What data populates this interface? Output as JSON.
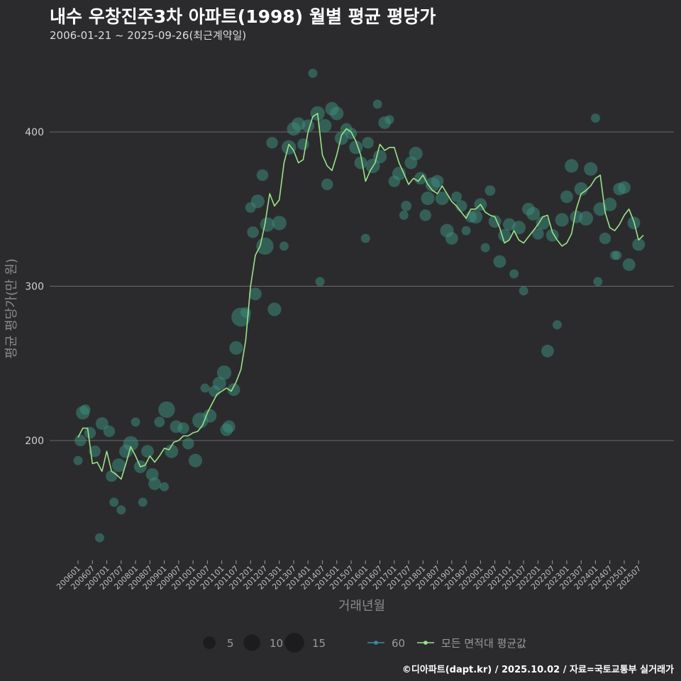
{
  "header": {
    "title": "내수 우창진주3차 아파트(1998) 월별 평균 평당가",
    "subtitle": "2006-01-21 ~ 2025-09-26(최근계약일)"
  },
  "footer": {
    "caption": "©디아파트(dapt.kr) / 2025.10.02 / 자료=국토교통부 실거래가"
  },
  "colors": {
    "background": "#2b2b2d",
    "line": "#9be38a",
    "point": "#3d8a7a",
    "grid": "#6a6a6a"
  },
  "chart_data": {
    "type": "line",
    "xlabel": "거래년월",
    "ylabel": "평균 평당가(만 원)",
    "ylim": [
      120,
      440
    ],
    "yticks": [
      200,
      300,
      400
    ],
    "grid": true,
    "xlim": [
      "2006-01",
      "2025-09"
    ],
    "x_tick_labels": [
      "200601",
      "200607",
      "200701",
      "200707",
      "200801",
      "200807",
      "200901",
      "200907",
      "201001",
      "201007",
      "201101",
      "201107",
      "201201",
      "201207",
      "201301",
      "201307",
      "201401",
      "201407",
      "201501",
      "201507",
      "201601",
      "201607",
      "201701",
      "201707",
      "201801",
      "201807",
      "201901",
      "201907",
      "202001",
      "202007",
      "202101",
      "202107",
      "202201",
      "202207",
      "202301",
      "202307",
      "202401",
      "202407",
      "202501",
      "202507"
    ],
    "legend": {
      "position": "bottom",
      "size_title": "",
      "size_entries": [
        {
          "label": "5",
          "value": 5
        },
        {
          "label": "10",
          "value": 10
        },
        {
          "label": "15",
          "value": 15
        }
      ],
      "series_entries": [
        {
          "label": "60"
        },
        {
          "label": "모든 면적대 평균값"
        }
      ]
    },
    "series": [
      {
        "name": "모든 면적대 평균값",
        "points": [
          [
            "2006-01",
            202
          ],
          [
            "2006-03",
            208
          ],
          [
            "2006-05",
            208
          ],
          [
            "2006-07",
            185
          ],
          [
            "2006-09",
            186
          ],
          [
            "2006-11",
            180
          ],
          [
            "2007-01",
            193
          ],
          [
            "2007-03",
            180
          ],
          [
            "2007-05",
            178
          ],
          [
            "2007-07",
            175
          ],
          [
            "2007-09",
            185
          ],
          [
            "2007-11",
            196
          ],
          [
            "2008-01",
            190
          ],
          [
            "2008-03",
            183
          ],
          [
            "2008-05",
            184
          ],
          [
            "2008-07",
            190
          ],
          [
            "2008-09",
            186
          ],
          [
            "2008-11",
            190
          ],
          [
            "2009-01",
            195
          ],
          [
            "2009-03",
            194
          ],
          [
            "2009-05",
            199
          ],
          [
            "2009-07",
            200
          ],
          [
            "2009-09",
            203
          ],
          [
            "2009-11",
            203
          ],
          [
            "2010-01",
            205
          ],
          [
            "2010-03",
            206
          ],
          [
            "2010-05",
            210
          ],
          [
            "2010-07",
            218
          ],
          [
            "2010-09",
            224
          ],
          [
            "2010-11",
            230
          ],
          [
            "2011-01",
            232
          ],
          [
            "2011-03",
            234
          ],
          [
            "2011-05",
            232
          ],
          [
            "2011-07",
            238
          ],
          [
            "2011-09",
            246
          ],
          [
            "2011-11",
            265
          ],
          [
            "2012-01",
            300
          ],
          [
            "2012-03",
            320
          ],
          [
            "2012-05",
            326
          ],
          [
            "2012-07",
            340
          ],
          [
            "2012-09",
            360
          ],
          [
            "2012-11",
            352
          ],
          [
            "2013-01",
            356
          ],
          [
            "2013-03",
            380
          ],
          [
            "2013-05",
            392
          ],
          [
            "2013-07",
            388
          ],
          [
            "2013-09",
            380
          ],
          [
            "2013-11",
            382
          ],
          [
            "2014-01",
            400
          ],
          [
            "2014-03",
            410
          ],
          [
            "2014-05",
            412
          ],
          [
            "2014-07",
            385
          ],
          [
            "2014-09",
            378
          ],
          [
            "2014-11",
            375
          ],
          [
            "2015-01",
            385
          ],
          [
            "2015-03",
            398
          ],
          [
            "2015-05",
            402
          ],
          [
            "2015-07",
            400
          ],
          [
            "2015-09",
            394
          ],
          [
            "2015-11",
            385
          ],
          [
            "2016-01",
            368
          ],
          [
            "2016-03",
            375
          ],
          [
            "2016-05",
            380
          ],
          [
            "2016-07",
            392
          ],
          [
            "2016-09",
            388
          ],
          [
            "2016-11",
            390
          ],
          [
            "2017-01",
            390
          ],
          [
            "2017-03",
            380
          ],
          [
            "2017-05",
            373
          ],
          [
            "2017-07",
            366
          ],
          [
            "2017-09",
            370
          ],
          [
            "2017-11",
            368
          ],
          [
            "2018-01",
            372
          ],
          [
            "2018-03",
            366
          ],
          [
            "2018-05",
            362
          ],
          [
            "2018-07",
            360
          ],
          [
            "2018-09",
            365
          ],
          [
            "2018-11",
            360
          ],
          [
            "2019-01",
            355
          ],
          [
            "2019-03",
            352
          ],
          [
            "2019-05",
            348
          ],
          [
            "2019-07",
            344
          ],
          [
            "2019-09",
            350
          ],
          [
            "2019-11",
            350
          ],
          [
            "2020-01",
            353
          ],
          [
            "2020-03",
            348
          ],
          [
            "2020-05",
            346
          ],
          [
            "2020-07",
            345
          ],
          [
            "2020-09",
            338
          ],
          [
            "2020-11",
            328
          ],
          [
            "2021-01",
            330
          ],
          [
            "2021-03",
            336
          ],
          [
            "2021-05",
            330
          ],
          [
            "2021-07",
            328
          ],
          [
            "2021-09",
            332
          ],
          [
            "2021-11",
            336
          ],
          [
            "2022-01",
            340
          ],
          [
            "2022-03",
            345
          ],
          [
            "2022-05",
            346
          ],
          [
            "2022-07",
            335
          ],
          [
            "2022-09",
            330
          ],
          [
            "2022-11",
            326
          ],
          [
            "2023-01",
            328
          ],
          [
            "2023-03",
            334
          ],
          [
            "2023-05",
            350
          ],
          [
            "2023-07",
            360
          ],
          [
            "2023-09",
            362
          ],
          [
            "2023-11",
            365
          ],
          [
            "2024-01",
            370
          ],
          [
            "2024-03",
            372
          ],
          [
            "2024-05",
            348
          ],
          [
            "2024-07",
            338
          ],
          [
            "2024-09",
            336
          ],
          [
            "2024-11",
            340
          ],
          [
            "2025-01",
            346
          ],
          [
            "2025-03",
            350
          ],
          [
            "2025-05",
            342
          ],
          [
            "2025-07",
            330
          ],
          [
            "2025-09",
            333
          ]
        ]
      }
    ],
    "points": [
      [
        "2006-01",
        187,
        2
      ],
      [
        "2006-02",
        200,
        4
      ],
      [
        "2006-03",
        218,
        6
      ],
      [
        "2006-04",
        220,
        3
      ],
      [
        "2006-06",
        205,
        4
      ],
      [
        "2006-08",
        193,
        4
      ],
      [
        "2006-10",
        137,
        2
      ],
      [
        "2006-11",
        211,
        5
      ],
      [
        "2007-02",
        206,
        4
      ],
      [
        "2007-03",
        177,
        4
      ],
      [
        "2007-04",
        160,
        2
      ],
      [
        "2007-06",
        184,
        6
      ],
      [
        "2007-07",
        155,
        2
      ],
      [
        "2007-09",
        193,
        6
      ],
      [
        "2007-11",
        198,
        8
      ],
      [
        "2008-01",
        212,
        2
      ],
      [
        "2008-03",
        183,
        5
      ],
      [
        "2008-04",
        160,
        2
      ],
      [
        "2008-06",
        193,
        5
      ],
      [
        "2008-08",
        178,
        5
      ],
      [
        "2008-09",
        172,
        5
      ],
      [
        "2008-11",
        212,
        3
      ],
      [
        "2009-01",
        170,
        2
      ],
      [
        "2009-02",
        220,
        10
      ],
      [
        "2009-04",
        193,
        6
      ],
      [
        "2009-06",
        209,
        5
      ],
      [
        "2009-09",
        208,
        4
      ],
      [
        "2009-11",
        198,
        4
      ],
      [
        "2010-02",
        187,
        6
      ],
      [
        "2010-04",
        213,
        9
      ],
      [
        "2010-06",
        234,
        2
      ],
      [
        "2010-08",
        216,
        6
      ],
      [
        "2010-10",
        232,
        4
      ],
      [
        "2010-12",
        237,
        6
      ],
      [
        "2011-02",
        244,
        7
      ],
      [
        "2011-03",
        207,
        5
      ],
      [
        "2011-04",
        209,
        5
      ],
      [
        "2011-06",
        233,
        5
      ],
      [
        "2011-07",
        260,
        6
      ],
      [
        "2011-09",
        280,
        14
      ],
      [
        "2011-11",
        283,
        3
      ],
      [
        "2012-01",
        351,
        3
      ],
      [
        "2012-02",
        335,
        4
      ],
      [
        "2012-03",
        295,
        5
      ],
      [
        "2012-04",
        355,
        6
      ],
      [
        "2012-06",
        372,
        4
      ],
      [
        "2012-07",
        326,
        11
      ],
      [
        "2012-08",
        340,
        7
      ],
      [
        "2012-10",
        393,
        4
      ],
      [
        "2012-11",
        285,
        6
      ],
      [
        "2013-01",
        341,
        7
      ],
      [
        "2013-03",
        326,
        2
      ],
      [
        "2013-05",
        390,
        7
      ],
      [
        "2013-07",
        402,
        6
      ],
      [
        "2013-09",
        405,
        6
      ],
      [
        "2013-11",
        392,
        4
      ],
      [
        "2014-01",
        404,
        5
      ],
      [
        "2014-03",
        438,
        2
      ],
      [
        "2014-05",
        412,
        7
      ],
      [
        "2014-06",
        303,
        2
      ],
      [
        "2014-08",
        404,
        6
      ],
      [
        "2014-09",
        366,
        4
      ],
      [
        "2014-11",
        415,
        6
      ],
      [
        "2015-01",
        412,
        6
      ],
      [
        "2015-03",
        396,
        6
      ],
      [
        "2015-05",
        402,
        4
      ],
      [
        "2015-07",
        399,
        4
      ],
      [
        "2015-09",
        390,
        6
      ],
      [
        "2015-11",
        380,
        5
      ],
      [
        "2016-01",
        331,
        2
      ],
      [
        "2016-02",
        393,
        4
      ],
      [
        "2016-04",
        378,
        7
      ],
      [
        "2016-06",
        418,
        2
      ],
      [
        "2016-07",
        384,
        6
      ],
      [
        "2016-09",
        406,
        5
      ],
      [
        "2016-11",
        408,
        2
      ],
      [
        "2017-01",
        368,
        4
      ],
      [
        "2017-03",
        373,
        6
      ],
      [
        "2017-05",
        346,
        2
      ],
      [
        "2017-06",
        352,
        3
      ],
      [
        "2017-08",
        380,
        5
      ],
      [
        "2017-10",
        386,
        6
      ],
      [
        "2017-12",
        370,
        5
      ],
      [
        "2018-02",
        346,
        4
      ],
      [
        "2018-03",
        357,
        6
      ],
      [
        "2018-05",
        366,
        7
      ],
      [
        "2018-07",
        368,
        5
      ],
      [
        "2018-09",
        357,
        6
      ],
      [
        "2018-11",
        336,
        6
      ],
      [
        "2019-01",
        331,
        5
      ],
      [
        "2019-03",
        358,
        3
      ],
      [
        "2019-05",
        352,
        4
      ],
      [
        "2019-07",
        336,
        2
      ],
      [
        "2019-09",
        345,
        4
      ],
      [
        "2019-11",
        345,
        6
      ],
      [
        "2020-01",
        353,
        5
      ],
      [
        "2020-03",
        325,
        2
      ],
      [
        "2020-05",
        362,
        3
      ],
      [
        "2020-07",
        342,
        5
      ],
      [
        "2020-09",
        316,
        5
      ],
      [
        "2020-11",
        333,
        5
      ],
      [
        "2021-01",
        340,
        5
      ],
      [
        "2021-03",
        308,
        2
      ],
      [
        "2021-05",
        338,
        6
      ],
      [
        "2021-07",
        297,
        2
      ],
      [
        "2021-09",
        350,
        5
      ],
      [
        "2021-11",
        347,
        6
      ],
      [
        "2022-01",
        334,
        4
      ],
      [
        "2022-03",
        341,
        6
      ],
      [
        "2022-05",
        258,
        5
      ],
      [
        "2022-07",
        333,
        5
      ],
      [
        "2022-09",
        275,
        2
      ],
      [
        "2022-11",
        343,
        6
      ],
      [
        "2023-01",
        358,
        5
      ],
      [
        "2023-03",
        378,
        6
      ],
      [
        "2023-05",
        345,
        5
      ],
      [
        "2023-07",
        363,
        6
      ],
      [
        "2023-09",
        344,
        7
      ],
      [
        "2023-11",
        376,
        6
      ],
      [
        "2024-01",
        409,
        2
      ],
      [
        "2024-02",
        303,
        2
      ],
      [
        "2024-03",
        350,
        6
      ],
      [
        "2024-05",
        331,
        4
      ],
      [
        "2024-07",
        353,
        6
      ],
      [
        "2024-09",
        320,
        2
      ],
      [
        "2024-10",
        320,
        2
      ],
      [
        "2024-11",
        363,
        5
      ],
      [
        "2025-01",
        364,
        5
      ],
      [
        "2025-03",
        314,
        5
      ],
      [
        "2025-05",
        341,
        5
      ],
      [
        "2025-07",
        327,
        5
      ]
    ]
  }
}
